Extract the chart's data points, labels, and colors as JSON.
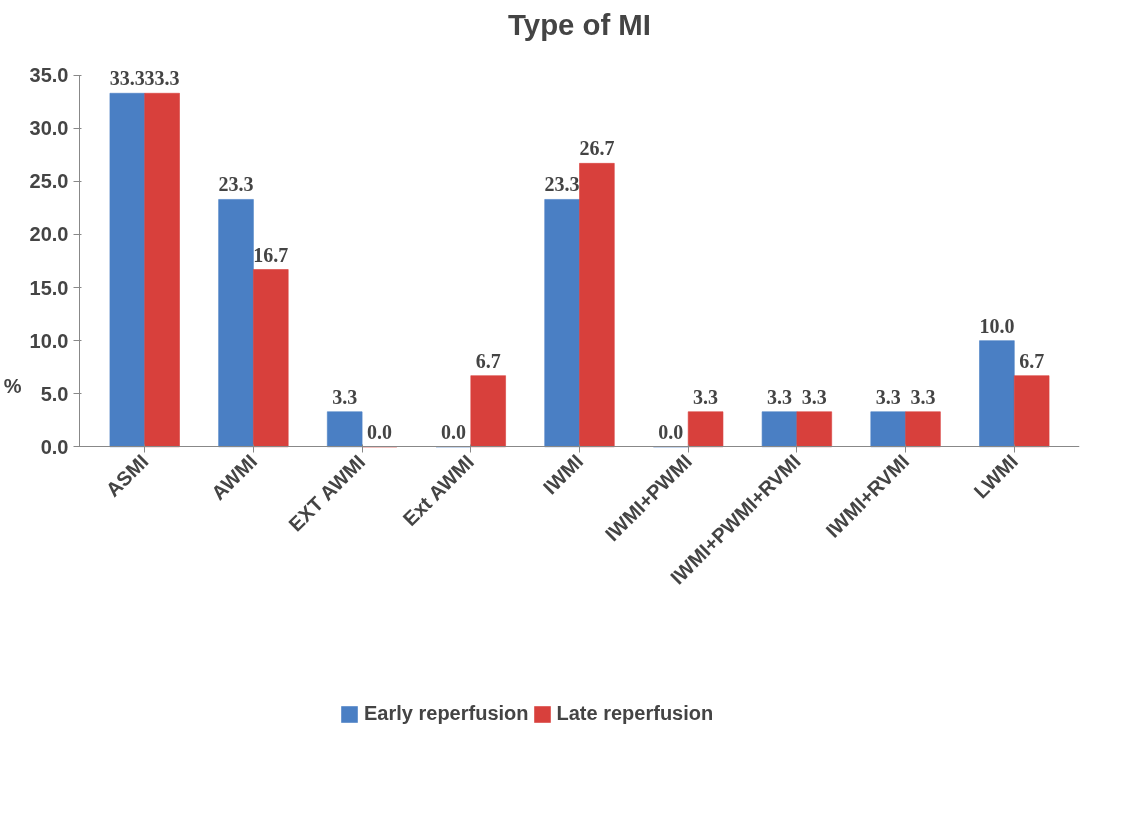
{
  "chart_data": {
    "type": "bar",
    "title": "Type of MI",
    "ylabel": "%",
    "categories": [
      "ASMI",
      "AWMI",
      "EXT AWMI",
      "Ext AWMI",
      "IWMI",
      "IWMI+PWMI",
      "IWMI+PWMI+RVMI",
      "IWMI+RVMI",
      "LWMI"
    ],
    "series": [
      {
        "name": "Early reperfusion",
        "color": "#4a7fc4",
        "values": [
          33.3,
          23.3,
          3.3,
          0.0,
          23.3,
          0.0,
          3.3,
          3.3,
          10.0
        ],
        "value_labels": [
          "33.3",
          "23.3",
          "3.3",
          "0.0",
          "23.3",
          "0.0",
          "3.3",
          "3.3",
          "10.0"
        ]
      },
      {
        "name": "Late reperfusion",
        "color": "#d8403c",
        "values": [
          33.3,
          16.7,
          0.0,
          6.7,
          26.7,
          3.3,
          3.3,
          3.3,
          6.7
        ],
        "value_labels": [
          "33.3",
          "16.7",
          "0.0",
          "6.7",
          "26.7",
          "3.3",
          "3.3",
          "3.3",
          "6.7"
        ]
      }
    ],
    "ylim": [
      0,
      35
    ],
    "yticks": [
      {
        "value": 0,
        "label": "0.0"
      },
      {
        "value": 5,
        "label": "5.0"
      },
      {
        "value": 10,
        "label": "10.0"
      },
      {
        "value": 15,
        "label": "15.0"
      },
      {
        "value": 20,
        "label": "20.0"
      },
      {
        "value": 25,
        "label": "25.0"
      },
      {
        "value": 30,
        "label": "30.0"
      },
      {
        "value": 35,
        "label": "35.0"
      }
    ],
    "legend": "bottom",
    "grid": false
  }
}
